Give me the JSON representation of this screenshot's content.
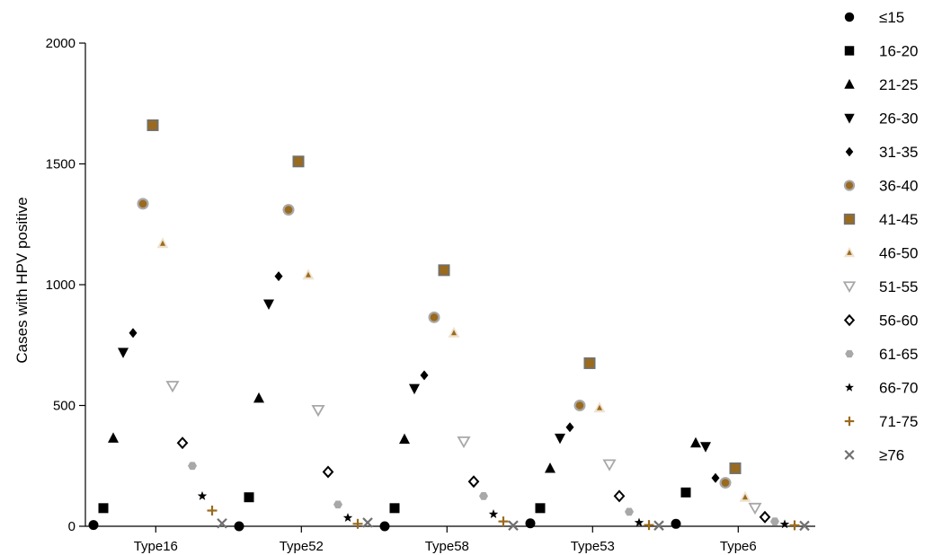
{
  "chart_data": {
    "type": "scatter",
    "title": "",
    "xlabel": "",
    "ylabel": "Cases with HPV positive",
    "ylim": [
      0,
      2000
    ],
    "yticks": [
      "0",
      "500",
      "1000",
      "1500",
      "2000"
    ],
    "categories": [
      "Type16",
      "Type52",
      "Type58",
      "Type53",
      "Type6"
    ],
    "legend_position": "right",
    "series": [
      {
        "name": "≤15",
        "marker": "circle",
        "color": "#000000",
        "values": [
          5,
          0,
          0,
          12,
          10
        ]
      },
      {
        "name": "16-20",
        "marker": "square",
        "color": "#000000",
        "values": [
          75,
          120,
          75,
          75,
          140
        ]
      },
      {
        "name": "21-25",
        "marker": "triangle-up",
        "color": "#000000",
        "values": [
          365,
          530,
          360,
          240,
          345
        ]
      },
      {
        "name": "26-30",
        "marker": "triangle-down",
        "color": "#000000",
        "values": [
          720,
          920,
          570,
          365,
          330
        ]
      },
      {
        "name": "31-35",
        "marker": "diamond",
        "color": "#000000",
        "values": [
          800,
          1035,
          625,
          410,
          200
        ]
      },
      {
        "name": "36-40",
        "marker": "circle-ringed",
        "color": "#9a6a1e",
        "values": [
          1335,
          1310,
          865,
          500,
          180
        ]
      },
      {
        "name": "41-45",
        "marker": "square-framed",
        "color": "#9a6a1e",
        "values": [
          1660,
          1510,
          1060,
          675,
          240
        ]
      },
      {
        "name": "46-50",
        "marker": "triangle-small",
        "color": "#9a6a1e",
        "values": [
          1170,
          1040,
          800,
          490,
          120
        ]
      },
      {
        "name": "51-55",
        "marker": "triangle-down-open",
        "color": "#a8a8a8",
        "values": [
          580,
          480,
          350,
          255,
          75
        ]
      },
      {
        "name": "56-60",
        "marker": "diamond-open",
        "color": "#000000",
        "values": [
          345,
          225,
          185,
          125,
          38
        ]
      },
      {
        "name": "61-65",
        "marker": "hexagon",
        "color": "#a8a8a8",
        "values": [
          250,
          90,
          125,
          60,
          20
        ]
      },
      {
        "name": "66-70",
        "marker": "star",
        "color": "#000000",
        "values": [
          125,
          35,
          50,
          15,
          8
        ]
      },
      {
        "name": "71-75",
        "marker": "plus",
        "color": "#9a6a1e",
        "values": [
          65,
          10,
          20,
          5,
          4
        ]
      },
      {
        "name": "≥76",
        "marker": "cross",
        "color": "#707070",
        "values": [
          12,
          15,
          3,
          3,
          2
        ]
      }
    ]
  }
}
